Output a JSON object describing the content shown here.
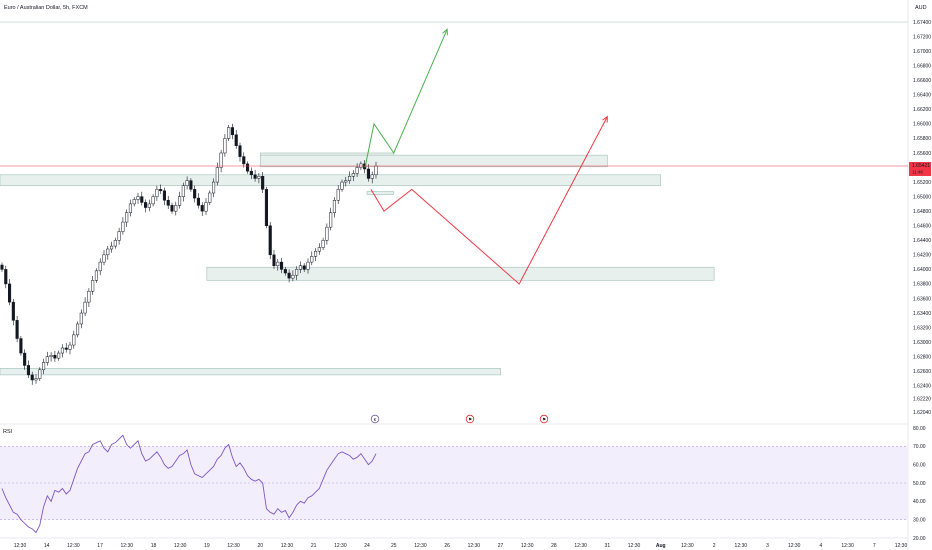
{
  "header": {
    "symbol_title": "Euro / Australian Dollar, 5h, FXCM",
    "currency": "AUD"
  },
  "price_badge": {
    "price": "1.65421",
    "countdown": "11:46"
  },
  "rsi_label": "RSI",
  "event_icons": [
    {
      "glyph": "€",
      "color": "#7b5ea7"
    },
    {
      "glyph": "⚑",
      "color": "#d32f2f"
    },
    {
      "glyph": "⚑",
      "color": "#d32f2f"
    }
  ],
  "colors": {
    "up_arrow": "#4caf50",
    "down_path": "#f23645",
    "zone_fill": "#e8f0ee",
    "zone_stroke": "#9fbfb6",
    "candle": "#131722",
    "rsi_line": "#7e57c2",
    "rsi_band": "#f3eefb",
    "price_line": "#f23645"
  },
  "chart_data": {
    "type": "candlestick",
    "title": "Euro / Australian Dollar, 5h, FXCM",
    "y_axis": {
      "ticks": [
        "1.67400",
        "1.67200",
        "1.67000",
        "1.66800",
        "1.66600",
        "1.66400",
        "1.66200",
        "1.66000",
        "1.65800",
        "1.65600",
        "1.65200",
        "1.65000",
        "1.64800",
        "1.64600",
        "1.64400",
        "1.64200",
        "1.64000",
        "1.63800",
        "1.63600",
        "1.63400",
        "1.63200",
        "1.63000",
        "1.62800",
        "1.62600",
        "1.62400",
        "1.62220",
        "1.62040"
      ],
      "range": [
        1.6204,
        1.674
      ]
    },
    "x_axis": {
      "ticks": [
        "12:30",
        "14",
        "12:30",
        "17",
        "12:30",
        "18",
        "12:30",
        "19",
        "12:30",
        "20",
        "12:30",
        "21",
        "12:30",
        "24",
        "25",
        "12:30",
        "26",
        "12:30",
        "27",
        "12:30",
        "28",
        "12:30",
        "31",
        "12:30",
        "Aug",
        "12:30",
        "2",
        "12:30",
        "3",
        "12:30",
        "4",
        "12:30",
        "7",
        "12:30"
      ]
    },
    "close_series": [
      1.64,
      1.638,
      1.6355,
      1.633,
      1.6305,
      1.6285,
      1.6268,
      1.6255,
      1.6248,
      1.625,
      1.6262,
      1.6272,
      1.628,
      1.6282,
      1.6278,
      1.6285,
      1.6292,
      1.629,
      1.6296,
      1.631,
      1.6325,
      1.634,
      1.6355,
      1.637,
      1.6385,
      1.6398,
      1.641,
      1.642,
      1.6428,
      1.6432,
      1.644,
      1.6452,
      1.6465,
      1.6478,
      1.649,
      1.6496,
      1.65,
      1.6492,
      1.6485,
      1.649,
      1.65,
      1.651,
      1.6508,
      1.6495,
      1.6488,
      1.648,
      1.6488,
      1.65,
      1.6515,
      1.6522,
      1.651,
      1.6498,
      1.6488,
      1.648,
      1.6492,
      1.6505,
      1.652,
      1.654,
      1.656,
      1.658,
      1.6595,
      1.6585,
      1.657,
      1.6555,
      1.6545,
      1.6535,
      1.653,
      1.6525,
      1.6528,
      1.651,
      1.646,
      1.642,
      1.6405,
      1.641,
      1.64,
      1.6395,
      1.6388,
      1.6392,
      1.64,
      1.6405,
      1.64,
      1.641,
      1.6418,
      1.6425,
      1.643,
      1.644,
      1.6458,
      1.6478,
      1.6495,
      1.651,
      1.652,
      1.6522,
      1.6528,
      1.6532,
      1.654,
      1.6545,
      1.6538,
      1.6525,
      1.653,
      1.6542
    ],
    "zones": [
      {
        "name": "zone-top-small",
        "y_top": 1.656,
        "y_bottom": 1.6555,
        "x_from": "20",
        "x_to": "25"
      },
      {
        "name": "zone-upper-right",
        "y_top": 1.6557,
        "y_bottom": 1.6541,
        "x_from": "20",
        "x_to": "31"
      },
      {
        "name": "zone-upper-wide",
        "y_top": 1.653,
        "y_bottom": 1.6515,
        "x_from": "start",
        "x_to": "Aug"
      },
      {
        "name": "zone-small-below",
        "y_top": 1.6507,
        "y_bottom": 1.6503,
        "x_from": "24",
        "x_to": "25"
      },
      {
        "name": "zone-middle",
        "y_top": 1.6403,
        "y_bottom": 1.6385,
        "x_from": "19",
        "x_to": "2"
      },
      {
        "name": "zone-bottom",
        "y_top": 1.6264,
        "y_bottom": 1.6255,
        "x_from": "start",
        "x_to": "27"
      }
    ],
    "projection_up": [
      [
        1.654,
        "24"
      ],
      [
        1.66,
        "24"
      ],
      [
        1.656,
        "25"
      ],
      [
        1.673,
        "26"
      ]
    ],
    "projection_down": [
      [
        1.651,
        "24"
      ],
      [
        1.648,
        "24"
      ],
      [
        1.651,
        "25"
      ],
      [
        1.638,
        "26"
      ],
      [
        1.661,
        "31"
      ]
    ],
    "last_price": 1.65421
  },
  "rsi_data": {
    "type": "line",
    "y_axis": {
      "ticks": [
        "80.00",
        "70.00",
        "60.00",
        "50.00",
        "40.00",
        "30.00",
        "20.00"
      ],
      "range": [
        20,
        80
      ]
    },
    "band": [
      30,
      70
    ],
    "midline": 50,
    "values": [
      47,
      42,
      38,
      34,
      33,
      30,
      28,
      26,
      25,
      23,
      27,
      37,
      43,
      40,
      46,
      45,
      47,
      44,
      46,
      52,
      58,
      62,
      66,
      67,
      71,
      72,
      73,
      69,
      67,
      71,
      72,
      74,
      76,
      71,
      69,
      71,
      73,
      66,
      62,
      63,
      65,
      67,
      64,
      60,
      58,
      59,
      62,
      65,
      66,
      68,
      60,
      55,
      54,
      53,
      55,
      57,
      59,
      63,
      65,
      69,
      71,
      64,
      59,
      61,
      58,
      54,
      52,
      51,
      52,
      50,
      36,
      34,
      33,
      36,
      34,
      35,
      31,
      34,
      38,
      40,
      39,
      42,
      43,
      45,
      47,
      52,
      57,
      60,
      63,
      66,
      67,
      66,
      65,
      63,
      64,
      66,
      63,
      60,
      62,
      66
    ]
  }
}
